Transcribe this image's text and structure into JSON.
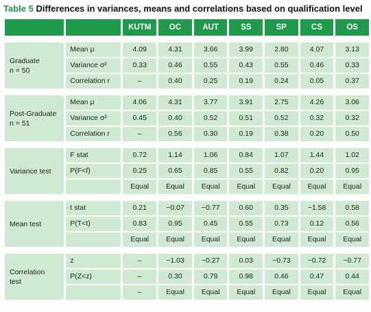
{
  "caption": {
    "number": "Table 5",
    "title": "Differences in variances, means and correlations based on qualification level"
  },
  "columns": [
    "KUTM",
    "OC",
    "AUT",
    "SS",
    "SP",
    "CS",
    "OS"
  ],
  "groups": [
    {
      "label_lines": [
        "Graduate",
        "n = 50"
      ],
      "rows": [
        {
          "label": "Mean μ",
          "values": [
            "4.09",
            "4.31",
            "3.66",
            "3.99",
            "2.80",
            "4.07",
            "3.13"
          ]
        },
        {
          "label": "Variance σ²",
          "values": [
            "0.33",
            "0.46",
            "0.55",
            "0.43",
            "0.55",
            "0.46",
            "0.33"
          ]
        },
        {
          "label": "Correlation r",
          "values": [
            "–",
            "0.40",
            "0.25",
            "0.19",
            "0.24",
            "0.05",
            "0.37"
          ]
        }
      ]
    },
    {
      "label_lines": [
        "Post-Graduate",
        "n = 51"
      ],
      "rows": [
        {
          "label": "Mean μ",
          "values": [
            "4.06",
            "4.31",
            "3.77",
            "3.91",
            "2.75",
            "4.26",
            "3.06"
          ]
        },
        {
          "label": "Variance σ²",
          "values": [
            "0.45",
            "0.40",
            "0.52",
            "0.51",
            "0.52",
            "0.32",
            "0.32"
          ]
        },
        {
          "label": "Correlation r",
          "values": [
            "–",
            "0.56",
            "0.30",
            "0.19",
            "0.38",
            "0.20",
            "0.50"
          ]
        }
      ]
    },
    {
      "label_lines": [
        "Variance test"
      ],
      "rows": [
        {
          "label": "F stat",
          "values": [
            "0.72",
            "1.14",
            "1.06",
            "0.84",
            "1.07",
            "1.44",
            "1.02"
          ]
        },
        {
          "label": "P(F<f)",
          "values": [
            "0.25",
            "0.65",
            "0.85",
            "0.55",
            "0.82",
            "0.20",
            "0.95"
          ]
        },
        {
          "label": "",
          "values": [
            "Equal",
            "Equal",
            "Equal",
            "Equal",
            "Equal",
            "Equal",
            "Equal"
          ]
        }
      ]
    },
    {
      "label_lines": [
        "Mean test"
      ],
      "rows": [
        {
          "label": "t stat",
          "values": [
            "0.21",
            "−0.07",
            "−0.77",
            "0.60",
            "0.35",
            "−1.58",
            "0.58"
          ]
        },
        {
          "label": "P(T<t)",
          "values": [
            "0.83",
            "0.95",
            "0.45",
            "0.55",
            "0.73",
            "0.12",
            "0.56"
          ]
        },
        {
          "label": "",
          "values": [
            "Equal",
            "Equal",
            "Equal",
            "Equal",
            "Equal",
            "Equal",
            "Equal"
          ]
        }
      ]
    },
    {
      "label_lines": [
        "Correlation",
        "test"
      ],
      "rows": [
        {
          "label": "z",
          "values": [
            "–",
            "−1.03",
            "−0.27",
            "0.03",
            "−0.73",
            "−0.72",
            "−0.77"
          ]
        },
        {
          "label": "P(Z<z)",
          "values": [
            "–",
            "0.30",
            "0.79",
            "0.98",
            "0.46",
            "0.47",
            "0.44"
          ]
        },
        {
          "label": "",
          "values": [
            "–",
            "Equal",
            "Equal",
            "Equal",
            "Equal",
            "Equal",
            "Equal"
          ]
        }
      ]
    }
  ]
}
